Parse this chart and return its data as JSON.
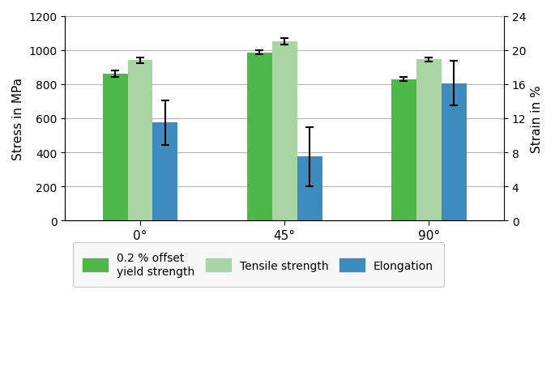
{
  "categories": [
    "0°",
    "45°",
    "90°"
  ],
  "yield_strength": [
    860,
    985,
    828
  ],
  "yield_err": [
    18,
    12,
    12
  ],
  "tensile_strength": [
    940,
    1050,
    945
  ],
  "tensile_err": [
    18,
    18,
    12
  ],
  "elongation_stress": [
    575,
    375,
    805
  ],
  "elongation_err_stress": [
    130,
    175,
    130
  ],
  "stress_ylim": [
    0,
    1200
  ],
  "strain_ylim": [
    0,
    24
  ],
  "stress_yticks": [
    0,
    200,
    400,
    600,
    800,
    1000,
    1200
  ],
  "strain_yticks": [
    0,
    4,
    8,
    12,
    16,
    20,
    24
  ],
  "ylabel_left": "Stress in MPa",
  "ylabel_right": "Strain in %",
  "color_yield": "#4db848",
  "color_tensile": "#a8d5a2",
  "color_elongation": "#3d8bbf",
  "legend_yield": "0.2 % offset\nyield strength",
  "legend_tensile": "Tensile strength",
  "legend_elongation": "Elongation",
  "bar_width": 0.26,
  "group_positions": [
    1.0,
    2.5,
    4.0
  ],
  "background_color": "#ffffff",
  "grid_color": "#b0b0b0"
}
